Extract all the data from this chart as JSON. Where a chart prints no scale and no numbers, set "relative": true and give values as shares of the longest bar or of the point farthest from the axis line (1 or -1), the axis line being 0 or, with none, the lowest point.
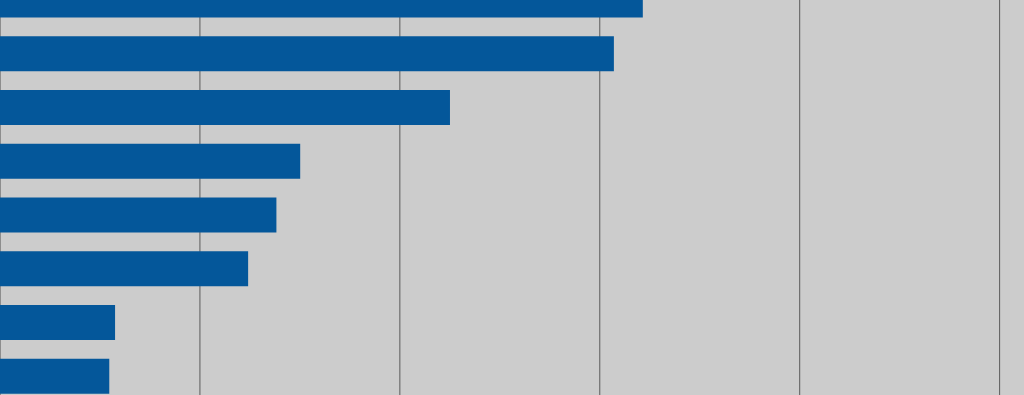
{
  "chart_data": {
    "type": "bar",
    "orientation": "horizontal",
    "relative": true,
    "categories": [
      null,
      null,
      null,
      null,
      null,
      null,
      null,
      null
    ],
    "values": [
      1,
      0.955,
      0.7,
      0.467,
      0.43,
      0.386,
      0.179,
      0.17
    ],
    "color": "#04579a",
    "grid": "x"
  }
}
